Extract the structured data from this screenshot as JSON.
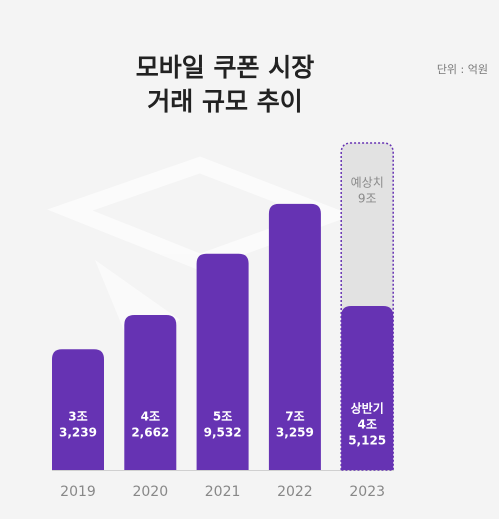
{
  "chart_data": {
    "type": "bar",
    "title": [
      "모바일 쿠폰 시장",
      "거래 규모 추이"
    ],
    "unit": "단위 : 억원",
    "categories": [
      "2019",
      "2020",
      "2021",
      "2022",
      "2023"
    ],
    "series": [
      {
        "color": "#6633b3",
        "values": [
          33239,
          42662,
          59532,
          73259,
          45125
        ],
        "value_labels": [
          [
            "3조",
            "3,239"
          ],
          [
            "4조",
            "2,662"
          ],
          [
            "5조",
            "9,532"
          ],
          [
            "7조",
            "3,259"
          ],
          [
            "상반기",
            "4조",
            "5,125"
          ]
        ]
      },
      {
        "color": "#e2e2e2",
        "values": [
          null,
          null,
          null,
          null,
          90000
        ],
        "value_labels": [
          null,
          null,
          null,
          null,
          [
            "예상치",
            "9조"
          ]
        ]
      }
    ]
  }
}
